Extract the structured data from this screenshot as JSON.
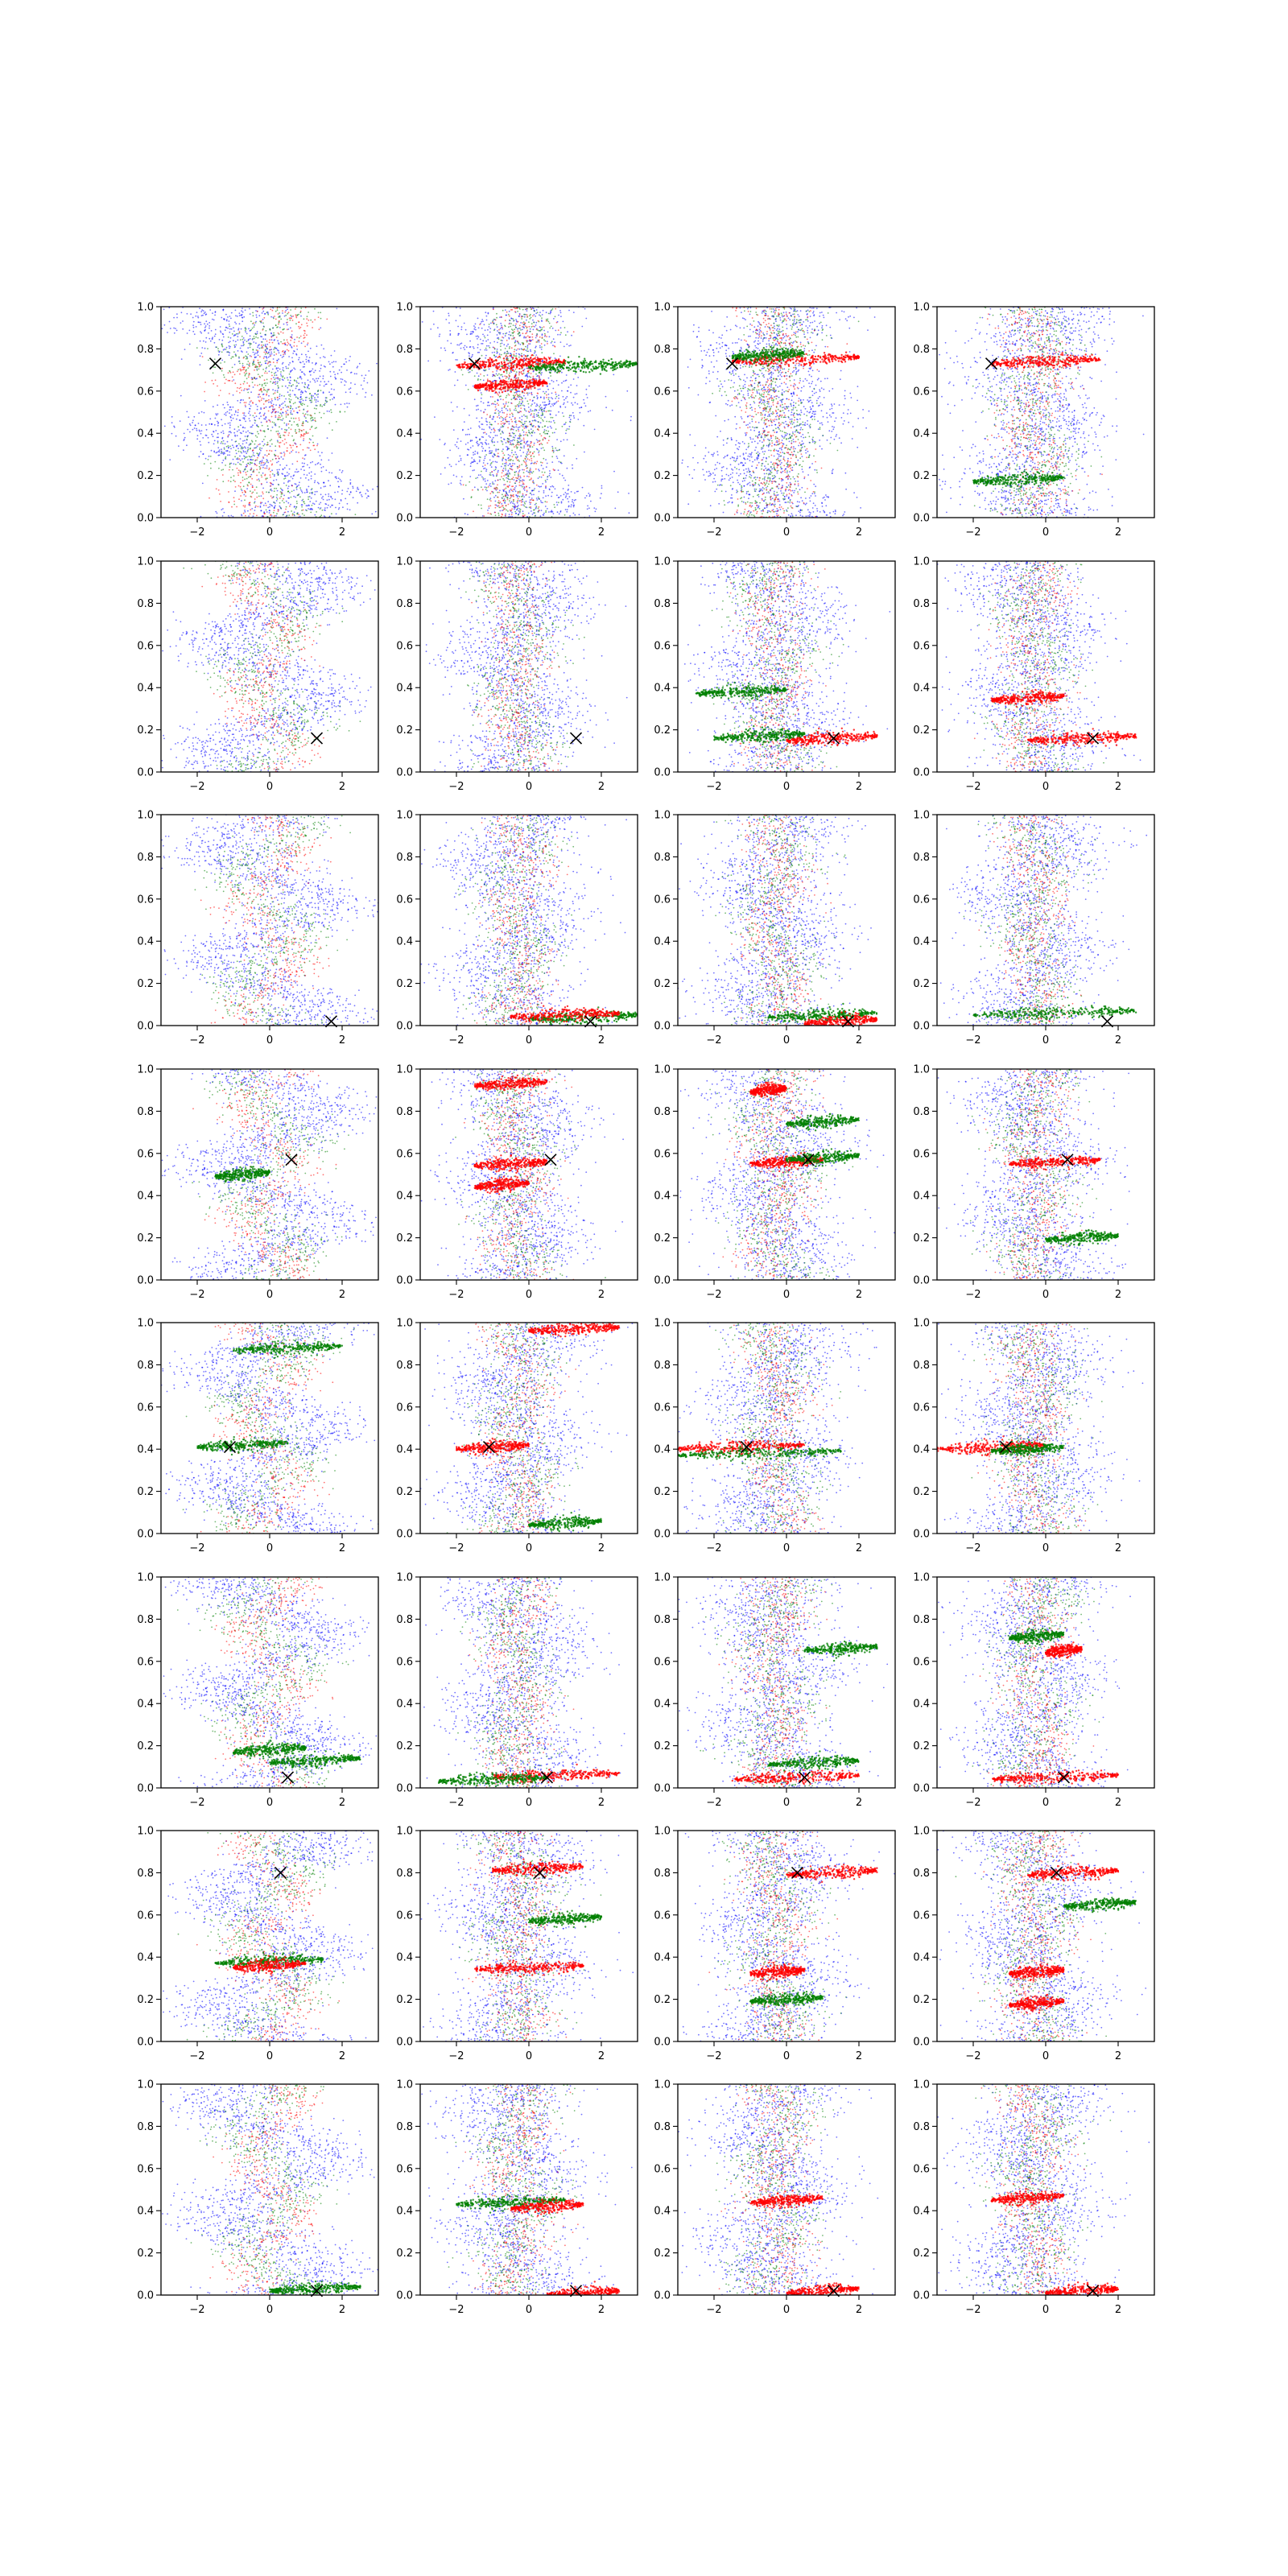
{
  "figure": {
    "rows": 8,
    "cols": 4,
    "title": ""
  },
  "colors": {
    "blue": "#0000ff",
    "green": "#008000",
    "red": "#ff0000",
    "marker": "#000000"
  },
  "axes_defaults": {
    "xlim": [
      -3,
      3
    ],
    "ylim": [
      0,
      1
    ],
    "xticks": [
      -2,
      0,
      2
    ],
    "xtick_labels": [
      "−2",
      "0",
      "2"
    ],
    "yticks": [
      0,
      0.2,
      0.4,
      0.6,
      0.8,
      1.0
    ],
    "ytick_labels": [
      "0.0",
      "0.2",
      "0.4",
      "0.6",
      "0.8",
      "1.0"
    ],
    "grid": false,
    "legend": "none"
  },
  "chart_data": [
    {
      "row": 1,
      "col": 1,
      "type": "scatter",
      "marker": [
        -1.5,
        0.73
      ],
      "clusters": []
    },
    {
      "row": 1,
      "col": 2,
      "type": "scatter",
      "marker": [
        -1.5,
        0.73
      ],
      "clusters": [
        {
          "color": "red",
          "x": [
            -2.0,
            1.0
          ],
          "y": 0.73
        },
        {
          "color": "red",
          "x": [
            -1.5,
            0.5
          ],
          "y": 0.63
        },
        {
          "color": "green",
          "x": [
            0.0,
            3.0
          ],
          "y": 0.72
        }
      ]
    },
    {
      "row": 1,
      "col": 3,
      "type": "scatter",
      "marker": [
        -1.5,
        0.73
      ],
      "clusters": [
        {
          "color": "red",
          "x": [
            -1.5,
            2.0
          ],
          "y": 0.75
        },
        {
          "color": "green",
          "x": [
            -1.5,
            0.5
          ],
          "y": 0.77
        }
      ]
    },
    {
      "row": 1,
      "col": 4,
      "type": "scatter",
      "marker": [
        -1.5,
        0.73
      ],
      "clusters": [
        {
          "color": "red",
          "x": [
            -1.5,
            1.5
          ],
          "y": 0.74
        },
        {
          "color": "green",
          "x": [
            -2.0,
            0.5
          ],
          "y": 0.18
        }
      ]
    },
    {
      "row": 2,
      "col": 1,
      "type": "scatter",
      "marker": [
        1.3,
        0.16
      ],
      "clusters": []
    },
    {
      "row": 2,
      "col": 2,
      "type": "scatter",
      "marker": [
        1.3,
        0.16
      ],
      "clusters": []
    },
    {
      "row": 2,
      "col": 3,
      "type": "scatter",
      "marker": [
        1.3,
        0.16
      ],
      "clusters": [
        {
          "color": "red",
          "x": [
            0.0,
            2.5
          ],
          "y": 0.16
        },
        {
          "color": "green",
          "x": [
            -2.5,
            0.0
          ],
          "y": 0.38
        },
        {
          "color": "green",
          "x": [
            -2.0,
            0.5
          ],
          "y": 0.17
        }
      ]
    },
    {
      "row": 2,
      "col": 4,
      "type": "scatter",
      "marker": [
        1.3,
        0.16
      ],
      "clusters": [
        {
          "color": "red",
          "x": [
            -0.5,
            2.5
          ],
          "y": 0.16
        },
        {
          "color": "red",
          "x": [
            -1.5,
            0.5
          ],
          "y": 0.35
        }
      ]
    },
    {
      "row": 3,
      "col": 1,
      "type": "scatter",
      "marker": [
        1.7,
        0.02
      ],
      "clusters": []
    },
    {
      "row": 3,
      "col": 2,
      "type": "scatter",
      "marker": [
        1.7,
        0.02
      ],
      "clusters": [
        {
          "color": "green",
          "x": [
            0.0,
            3.0
          ],
          "y": 0.04
        },
        {
          "color": "red",
          "x": [
            -0.5,
            2.5
          ],
          "y": 0.05
        }
      ]
    },
    {
      "row": 3,
      "col": 3,
      "type": "scatter",
      "marker": [
        1.7,
        0.02
      ],
      "clusters": [
        {
          "color": "green",
          "x": [
            -0.5,
            2.5
          ],
          "y": 0.05
        },
        {
          "color": "red",
          "x": [
            0.5,
            2.5
          ],
          "y": 0.02
        }
      ]
    },
    {
      "row": 3,
      "col": 4,
      "type": "scatter",
      "marker": [
        1.7,
        0.02
      ],
      "clusters": [
        {
          "color": "green",
          "x": [
            -2.0,
            2.5
          ],
          "y": 0.06
        }
      ]
    },
    {
      "row": 4,
      "col": 1,
      "type": "scatter",
      "marker": [
        0.6,
        0.57
      ],
      "clusters": [
        {
          "color": "green",
          "x": [
            -1.5,
            0.0
          ],
          "y": 0.5
        }
      ]
    },
    {
      "row": 4,
      "col": 2,
      "type": "scatter",
      "marker": [
        0.6,
        0.57
      ],
      "clusters": [
        {
          "color": "red",
          "x": [
            -1.5,
            0.5
          ],
          "y": 0.93
        },
        {
          "color": "red",
          "x": [
            -1.5,
            0.5
          ],
          "y": 0.55
        },
        {
          "color": "red",
          "x": [
            -1.5,
            0.0
          ],
          "y": 0.45
        }
      ]
    },
    {
      "row": 4,
      "col": 3,
      "type": "scatter",
      "marker": [
        0.6,
        0.57
      ],
      "clusters": [
        {
          "color": "red",
          "x": [
            -1.0,
            1.0
          ],
          "y": 0.56
        },
        {
          "color": "green",
          "x": [
            0.0,
            2.0
          ],
          "y": 0.58
        },
        {
          "color": "green",
          "x": [
            0.0,
            2.0
          ],
          "y": 0.75
        },
        {
          "color": "red",
          "x": [
            -1.0,
            0.0
          ],
          "y": 0.9
        }
      ]
    },
    {
      "row": 4,
      "col": 4,
      "type": "scatter",
      "marker": [
        0.6,
        0.57
      ],
      "clusters": [
        {
          "color": "red",
          "x": [
            -1.0,
            1.5
          ],
          "y": 0.56
        },
        {
          "color": "green",
          "x": [
            0.0,
            2.0
          ],
          "y": 0.2
        }
      ]
    },
    {
      "row": 5,
      "col": 1,
      "type": "scatter",
      "marker": [
        -1.1,
        0.41
      ],
      "clusters": [
        {
          "color": "green",
          "x": [
            -2.0,
            0.5
          ],
          "y": 0.42
        },
        {
          "color": "green",
          "x": [
            -1.0,
            2.0
          ],
          "y": 0.88
        }
      ]
    },
    {
      "row": 5,
      "col": 2,
      "type": "scatter",
      "marker": [
        -1.1,
        0.41
      ],
      "clusters": [
        {
          "color": "red",
          "x": [
            -2.0,
            0.0
          ],
          "y": 0.41
        },
        {
          "color": "red",
          "x": [
            0.0,
            2.5
          ],
          "y": 0.97
        },
        {
          "color": "green",
          "x": [
            0.0,
            2.0
          ],
          "y": 0.05
        }
      ]
    },
    {
      "row": 5,
      "col": 3,
      "type": "scatter",
      "marker": [
        -1.1,
        0.41
      ],
      "clusters": [
        {
          "color": "red",
          "x": [
            -3.0,
            0.5
          ],
          "y": 0.41
        },
        {
          "color": "green",
          "x": [
            -3.0,
            1.5
          ],
          "y": 0.38
        }
      ]
    },
    {
      "row": 5,
      "col": 4,
      "type": "scatter",
      "marker": [
        -1.1,
        0.41
      ],
      "clusters": [
        {
          "color": "red",
          "x": [
            -3.0,
            0.0
          ],
          "y": 0.41
        },
        {
          "color": "green",
          "x": [
            -1.5,
            0.5
          ],
          "y": 0.4
        }
      ]
    },
    {
      "row": 6,
      "col": 1,
      "type": "scatter",
      "marker": [
        0.5,
        0.05
      ],
      "clusters": [
        {
          "color": "green",
          "x": [
            0.0,
            2.5
          ],
          "y": 0.13
        },
        {
          "color": "green",
          "x": [
            -1.0,
            1.0
          ],
          "y": 0.18
        }
      ]
    },
    {
      "row": 6,
      "col": 2,
      "type": "scatter",
      "marker": [
        0.5,
        0.05
      ],
      "clusters": [
        {
          "color": "red",
          "x": [
            -1.0,
            2.5
          ],
          "y": 0.06
        },
        {
          "color": "green",
          "x": [
            -2.5,
            0.5
          ],
          "y": 0.04
        }
      ]
    },
    {
      "row": 6,
      "col": 3,
      "type": "scatter",
      "marker": [
        0.5,
        0.05
      ],
      "clusters": [
        {
          "color": "red",
          "x": [
            -1.5,
            2.0
          ],
          "y": 0.05
        },
        {
          "color": "green",
          "x": [
            0.5,
            2.5
          ],
          "y": 0.66
        },
        {
          "color": "green",
          "x": [
            -0.5,
            2.0
          ],
          "y": 0.12
        }
      ]
    },
    {
      "row": 6,
      "col": 4,
      "type": "scatter",
      "marker": [
        0.5,
        0.05
      ],
      "clusters": [
        {
          "color": "red",
          "x": [
            -1.5,
            2.0
          ],
          "y": 0.05
        },
        {
          "color": "red",
          "x": [
            0.0,
            1.0
          ],
          "y": 0.65
        },
        {
          "color": "green",
          "x": [
            -1.0,
            0.5
          ],
          "y": 0.72
        }
      ]
    },
    {
      "row": 7,
      "col": 1,
      "type": "scatter",
      "marker": [
        0.3,
        0.8
      ],
      "clusters": [
        {
          "color": "green",
          "x": [
            -1.5,
            1.5
          ],
          "y": 0.38
        },
        {
          "color": "red",
          "x": [
            -1.0,
            1.0
          ],
          "y": 0.36
        }
      ]
    },
    {
      "row": 7,
      "col": 2,
      "type": "scatter",
      "marker": [
        0.3,
        0.8
      ],
      "clusters": [
        {
          "color": "red",
          "x": [
            -1.0,
            1.5
          ],
          "y": 0.82
        },
        {
          "color": "red",
          "x": [
            -1.5,
            1.5
          ],
          "y": 0.35
        },
        {
          "color": "green",
          "x": [
            0.0,
            2.0
          ],
          "y": 0.58
        }
      ]
    },
    {
      "row": 7,
      "col": 3,
      "type": "scatter",
      "marker": [
        0.3,
        0.8
      ],
      "clusters": [
        {
          "color": "red",
          "x": [
            0.0,
            2.5
          ],
          "y": 0.8
        },
        {
          "color": "red",
          "x": [
            -1.0,
            0.5
          ],
          "y": 0.33
        },
        {
          "color": "green",
          "x": [
            -1.0,
            1.0
          ],
          "y": 0.2
        }
      ]
    },
    {
      "row": 7,
      "col": 4,
      "type": "scatter",
      "marker": [
        0.3,
        0.8
      ],
      "clusters": [
        {
          "color": "red",
          "x": [
            -0.5,
            2.0
          ],
          "y": 0.8
        },
        {
          "color": "red",
          "x": [
            -1.0,
            0.5
          ],
          "y": 0.33
        },
        {
          "color": "red",
          "x": [
            -1.0,
            0.5
          ],
          "y": 0.18
        },
        {
          "color": "green",
          "x": [
            0.5,
            2.5
          ],
          "y": 0.65
        }
      ]
    },
    {
      "row": 8,
      "col": 1,
      "type": "scatter",
      "marker": [
        1.3,
        0.02
      ],
      "clusters": [
        {
          "color": "green",
          "x": [
            0.0,
            2.5
          ],
          "y": 0.03
        }
      ]
    },
    {
      "row": 8,
      "col": 2,
      "type": "scatter",
      "marker": [
        1.3,
        0.02
      ],
      "clusters": [
        {
          "color": "green",
          "x": [
            -2.0,
            1.0
          ],
          "y": 0.44
        },
        {
          "color": "red",
          "x": [
            -0.5,
            1.5
          ],
          "y": 0.42
        },
        {
          "color": "red",
          "x": [
            0.5,
            2.5
          ],
          "y": 0.01
        }
      ]
    },
    {
      "row": 8,
      "col": 3,
      "type": "scatter",
      "marker": [
        1.3,
        0.02
      ],
      "clusters": [
        {
          "color": "red",
          "x": [
            -1.0,
            1.0
          ],
          "y": 0.45
        },
        {
          "color": "red",
          "x": [
            0.0,
            2.0
          ],
          "y": 0.02
        }
      ]
    },
    {
      "row": 8,
      "col": 4,
      "type": "scatter",
      "marker": [
        1.3,
        0.02
      ],
      "clusters": [
        {
          "color": "red",
          "x": [
            -1.5,
            0.5
          ],
          "y": 0.46
        },
        {
          "color": "red",
          "x": [
            0.0,
            2.0
          ],
          "y": 0.02
        }
      ]
    }
  ]
}
